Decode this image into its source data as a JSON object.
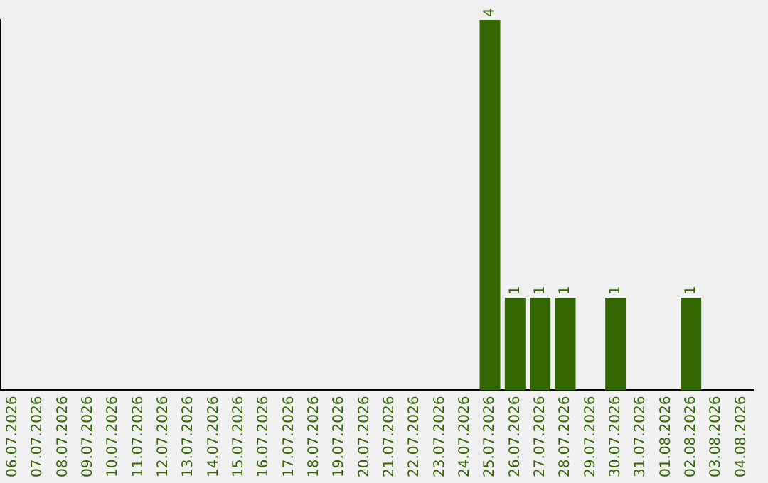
{
  "chart_data": {
    "type": "bar",
    "categories": [
      "06.07.2026",
      "07.07.2026",
      "08.07.2026",
      "09.07.2026",
      "10.07.2026",
      "11.07.2026",
      "12.07.2026",
      "13.07.2026",
      "14.07.2026",
      "15.07.2026",
      "16.07.2026",
      "17.07.2026",
      "18.07.2026",
      "19.07.2026",
      "20.07.2026",
      "21.07.2026",
      "22.07.2026",
      "23.07.2026",
      "24.07.2026",
      "25.07.2026",
      "26.07.2026",
      "27.07.2026",
      "28.07.2026",
      "29.07.2026",
      "30.07.2026",
      "31.07.2026",
      "01.08.2026",
      "02.08.2026",
      "03.08.2026",
      "04.08.2026"
    ],
    "values": [
      null,
      null,
      null,
      null,
      null,
      null,
      null,
      null,
      null,
      null,
      null,
      null,
      null,
      null,
      null,
      null,
      null,
      null,
      null,
      4,
      1,
      1,
      1,
      null,
      1,
      null,
      null,
      1,
      null,
      null
    ],
    "data_labels": true,
    "color": "#336600",
    "grid": false,
    "legend": false,
    "tick_labels": "x"
  }
}
